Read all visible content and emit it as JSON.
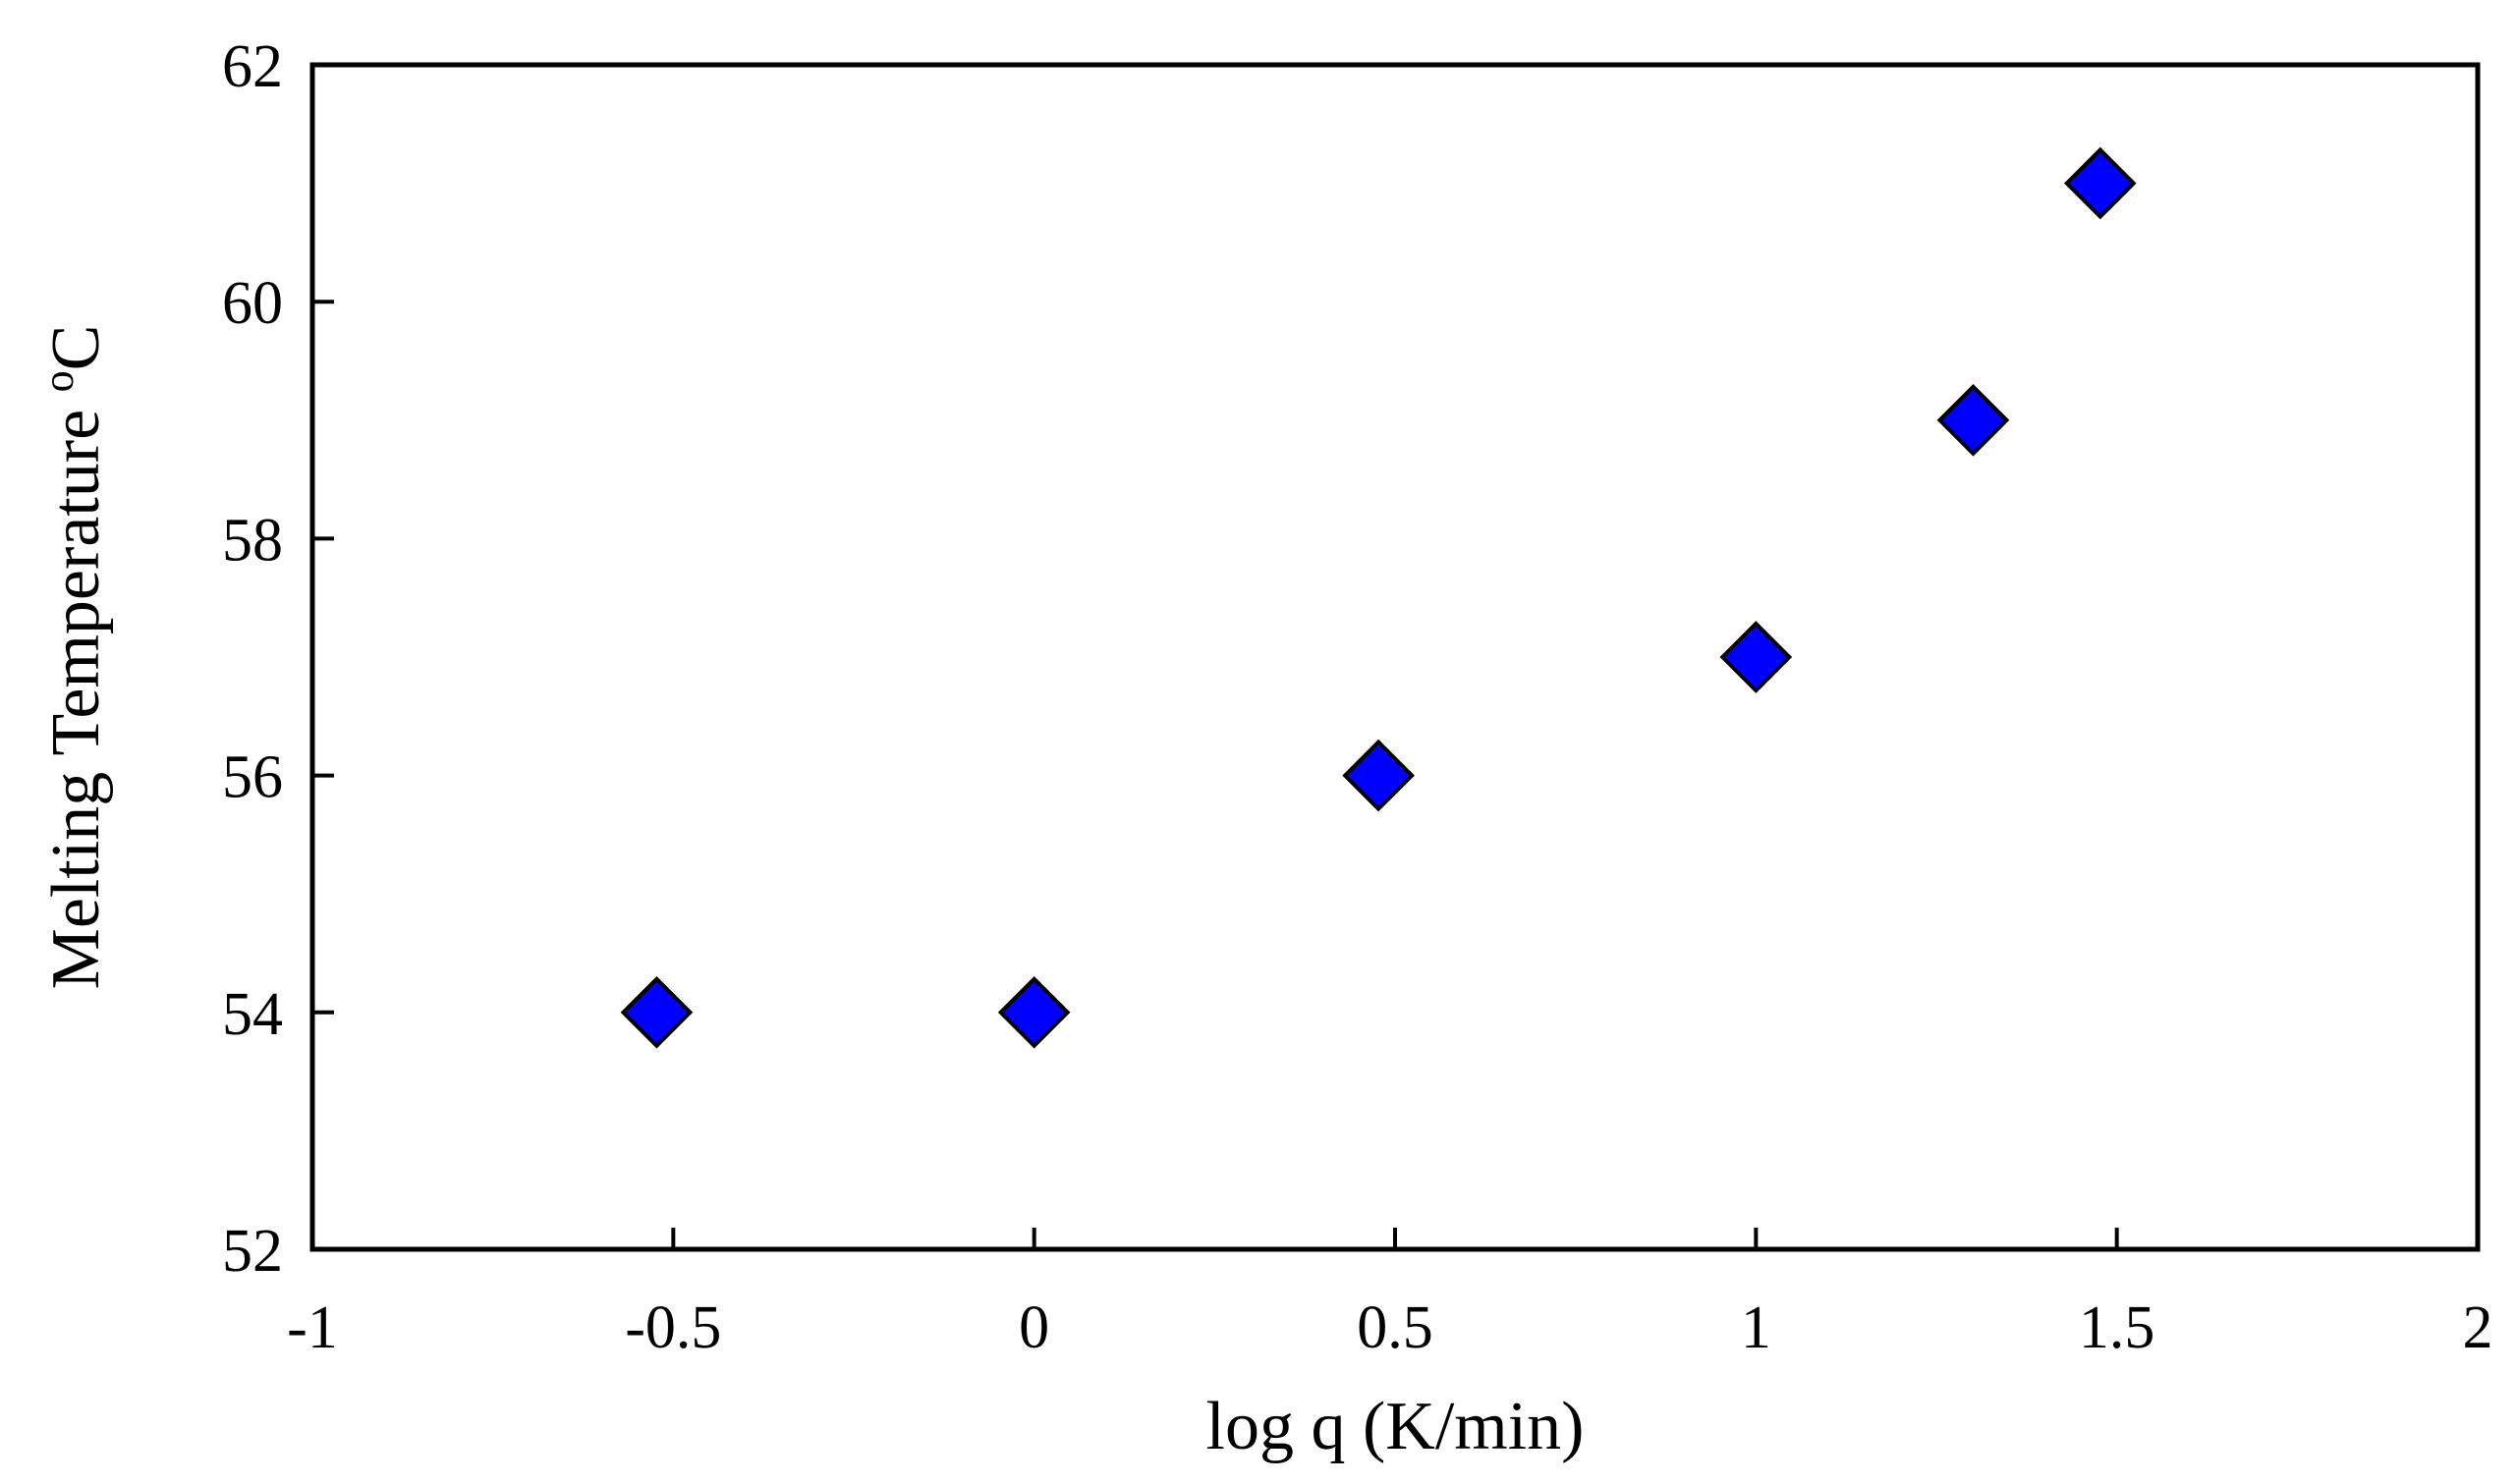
{
  "chart_data": {
    "type": "scatter",
    "title": "",
    "xlabel": "log q (K/min)",
    "ylabel": "Melting Temperature",
    "ylabel_unit_sup": "o",
    "ylabel_unit": "C",
    "xlim": [
      -1,
      2
    ],
    "ylim": [
      52,
      62
    ],
    "xticks": [
      -1,
      -0.5,
      0,
      0.5,
      1,
      1.5,
      2
    ],
    "xtick_labels": [
      "-1",
      "-0.5",
      "0",
      "0.5",
      "1",
      "1.5",
      "2"
    ],
    "yticks": [
      52,
      54,
      56,
      58,
      60,
      62
    ],
    "ytick_labels": [
      "52",
      "54",
      "56",
      "58",
      "60",
      "62"
    ],
    "grid": false,
    "legend": "none",
    "series": [
      {
        "marker": "diamond",
        "color": "#0000ff",
        "edge_color": "#000000",
        "x": [
          -0.523,
          0,
          0.477,
          1,
          1.301,
          1.477
        ],
        "y": [
          54,
          54,
          56,
          57,
          59,
          61
        ]
      }
    ]
  }
}
